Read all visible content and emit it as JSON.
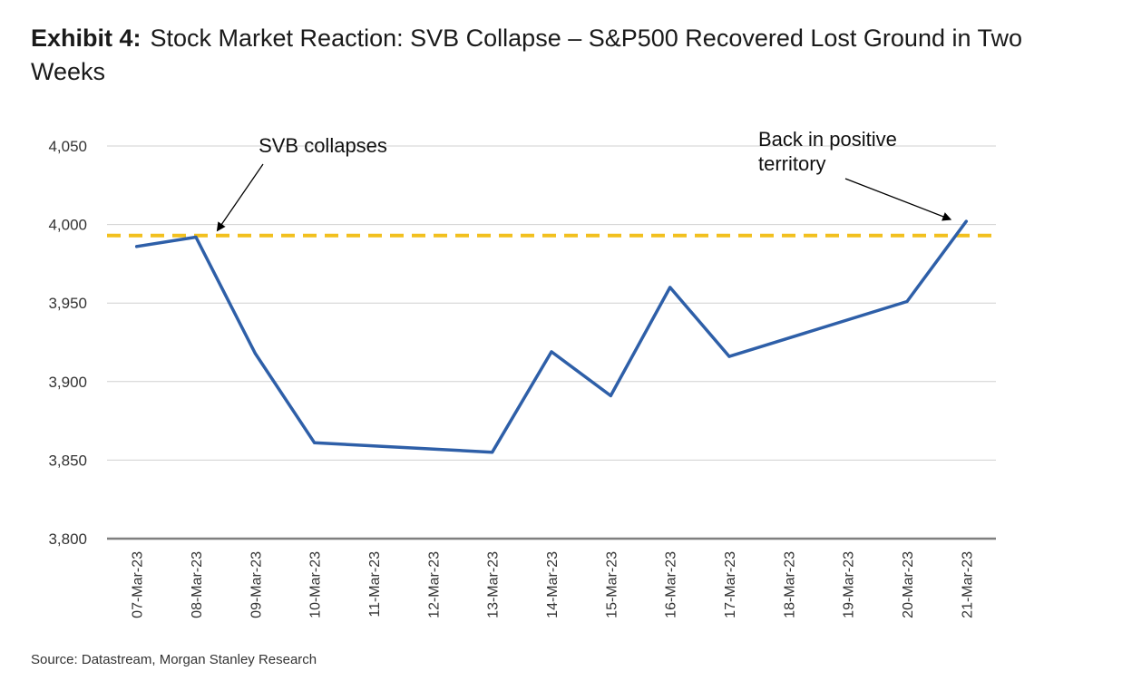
{
  "header": {
    "exhibit_label": "Exhibit 4:",
    "title": "Stock Market Reaction: SVB Collapse – S&P500 Recovered Lost Ground in Two Weeks"
  },
  "footer": {
    "source": "Source: Datastream, Morgan Stanley Research"
  },
  "chart_data": {
    "type": "line",
    "title": "Stock Market Reaction: SVB Collapse – S&P500 Recovered Lost Ground in Two Weeks",
    "xlabel": "",
    "ylabel": "",
    "categories": [
      "07-Mar-23",
      "08-Mar-23",
      "09-Mar-23",
      "10-Mar-23",
      "11-Mar-23",
      "12-Mar-23",
      "13-Mar-23",
      "14-Mar-23",
      "15-Mar-23",
      "16-Mar-23",
      "17-Mar-23",
      "18-Mar-23",
      "19-Mar-23",
      "20-Mar-23",
      "21-Mar-23"
    ],
    "ylim": [
      3800,
      4050
    ],
    "yticks": [
      3800,
      3850,
      3900,
      3950,
      4000,
      4050
    ],
    "ytick_labels": [
      "3,800",
      "3,850",
      "3,900",
      "3,950",
      "4,000",
      "4,050"
    ],
    "grid": true,
    "series": [
      {
        "color": "#2e5fa8",
        "points": [
          {
            "x": "07-Mar-23",
            "y": 3986
          },
          {
            "x": "08-Mar-23",
            "y": 3992
          },
          {
            "x": "09-Mar-23",
            "y": 3918
          },
          {
            "x": "10-Mar-23",
            "y": 3861
          },
          {
            "x": "13-Mar-23",
            "y": 3855
          },
          {
            "x": "14-Mar-23",
            "y": 3919
          },
          {
            "x": "15-Mar-23",
            "y": 3891
          },
          {
            "x": "16-Mar-23",
            "y": 3960
          },
          {
            "x": "17-Mar-23",
            "y": 3916
          },
          {
            "x": "20-Mar-23",
            "y": 3951
          },
          {
            "x": "21-Mar-23",
            "y": 4002
          }
        ]
      }
    ],
    "reference_line": {
      "y": 3993,
      "color": "#f2c01e",
      "style": "dashed"
    },
    "annotations": [
      {
        "text": "SVB collapses",
        "target": {
          "x": "08-Mar-23",
          "y": 3993
        }
      },
      {
        "text": "Back in positive territory",
        "lines": [
          "Back in positive",
          "territory"
        ],
        "target": {
          "x": "21-Mar-23",
          "y": 3993
        }
      }
    ]
  }
}
